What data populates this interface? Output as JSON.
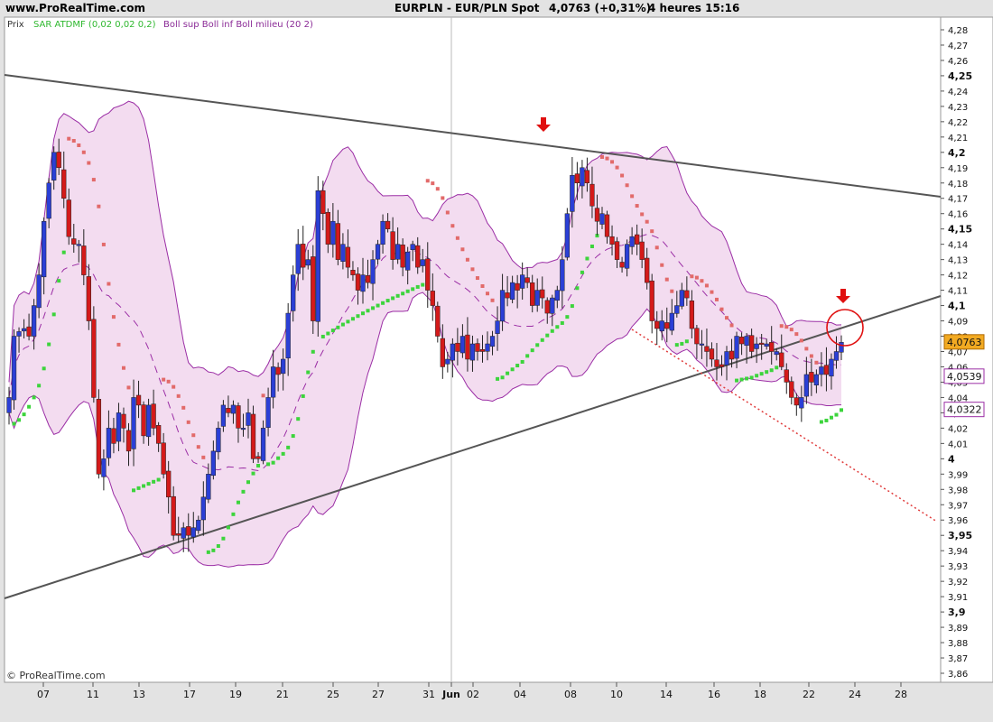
{
  "header": {
    "site": "www.ProRealTime.com",
    "symbol": "EURPLN - EUR/PLN Spot",
    "price_change": "4,0763 (+0,31%)",
    "timeframe": "4 heures  15:16"
  },
  "legend": {
    "price": "Prix",
    "sar": "SAR ATDMF (0,02 0,02 0,2)",
    "bollinger": "Boll sup Boll inf Boll milieu (20 2)"
  },
  "copyright": "© ProRealTime.com",
  "colors": {
    "bg": "#ffffff",
    "frame": "#e3e3e3",
    "up": "#2b3fd6",
    "down": "#d41a1a",
    "sar_up": "#3cd43c",
    "sar_down": "#e26a6a",
    "boll_fill": "#f3dcf0",
    "boll_line": "#9b2ea5",
    "trend": "#555555",
    "support_dotted": "#e03c3c",
    "arrow": "#e01010",
    "price_tag": "#f2aa22"
  },
  "y_axis": {
    "ticks": [
      "4,28",
      "4,27",
      "4,26",
      "4,25",
      "4,24",
      "4,23",
      "4,22",
      "4,21",
      "4,2",
      "4,19",
      "4,18",
      "4,17",
      "4,16",
      "4,15",
      "4,14",
      "4,13",
      "4,12",
      "4,11",
      "4,1",
      "4,09",
      "4,08",
      "4,07",
      "4,06",
      "4,05",
      "4,04",
      "4,03",
      "4,02",
      "4,01",
      "4",
      "3,99",
      "3,98",
      "3,97",
      "3,96",
      "3,95",
      "3,94",
      "3,93",
      "3,92",
      "3,91",
      "3,9",
      "3,89",
      "3,88",
      "3,87",
      "3,86"
    ],
    "bold": [
      "4,25",
      "4,2",
      "4,15",
      "4,1",
      "4",
      "3,95",
      "3,9"
    ],
    "tags": [
      {
        "label": "4,0763",
        "value": 4.0763,
        "style": "last"
      },
      {
        "label": "4,0539",
        "value": 4.0539,
        "style": "band"
      },
      {
        "label": "4,0322",
        "value": 4.0322,
        "style": "band"
      }
    ]
  },
  "x_axis": {
    "labels": [
      "07",
      "11",
      "13",
      "17",
      "19",
      "21",
      "25",
      "27",
      "31",
      "Jun",
      "02",
      "04",
      "08",
      "10",
      "14",
      "16",
      "18",
      "22",
      "24",
      "28"
    ]
  },
  "chart_data": {
    "type": "candlestick",
    "title": "EURPLN - EUR/PLN Spot",
    "timeframe": "4 heures",
    "ylim": [
      3.855,
      4.285
    ],
    "grid": false,
    "last_price": 4.0763,
    "change_pct": "+0,31%",
    "date_ticks": [
      "07",
      "11",
      "13",
      "17",
      "19",
      "21",
      "25",
      "27",
      "31",
      "Jun",
      "02",
      "04",
      "08",
      "10",
      "14",
      "16",
      "18",
      "22",
      "24",
      "28"
    ],
    "close": [
      4.04,
      4.08,
      4.083,
      4.085,
      4.08,
      4.1,
      4.12,
      4.155,
      4.18,
      4.2,
      4.19,
      4.17,
      4.145,
      4.14,
      4.14,
      4.12,
      4.09,
      4.04,
      3.99,
      4.0,
      4.02,
      4.01,
      4.03,
      4.02,
      4.005,
      4.04,
      4.035,
      4.015,
      4.035,
      4.02,
      4.01,
      3.99,
      3.975,
      3.95,
      3.95,
      3.955,
      3.95,
      3.955,
      3.96,
      3.975,
      3.99,
      4.005,
      4.02,
      4.035,
      4.03,
      4.035,
      4.02,
      4.02,
      4.03,
      4.0,
      4.0,
      4.02,
      4.04,
      4.06,
      4.055,
      4.065,
      4.095,
      4.12,
      4.14,
      4.125,
      4.13,
      4.09,
      4.175,
      4.16,
      4.14,
      4.155,
      4.13,
      4.14,
      4.125,
      4.12,
      4.11,
      4.12,
      4.115,
      4.13,
      4.14,
      4.155,
      4.15,
      4.13,
      4.14,
      4.125,
      4.135,
      4.14,
      4.125,
      4.13,
      4.11,
      4.1,
      4.08,
      4.06,
      4.065,
      4.075,
      4.07,
      4.08,
      4.065,
      4.075,
      4.07,
      4.07,
      4.075,
      4.08,
      4.09,
      4.11,
      4.105,
      4.115,
      4.11,
      4.12,
      4.115,
      4.1,
      4.11,
      4.105,
      4.095,
      4.105,
      4.11,
      4.13,
      4.16,
      4.185,
      4.18,
      4.19,
      4.18,
      4.165,
      4.155,
      4.16,
      4.145,
      4.14,
      4.13,
      4.125,
      4.14,
      4.145,
      4.14,
      4.13,
      4.115,
      4.09,
      4.085,
      4.09,
      4.085,
      4.095,
      4.1,
      4.11,
      4.105,
      4.085,
      4.075,
      4.075,
      4.07,
      4.065,
      4.06,
      4.06,
      4.07,
      4.065,
      4.08,
      4.075,
      4.08,
      4.07,
      4.075,
      4.075,
      4.075,
      4.07,
      4.07,
      4.06,
      4.05,
      4.04,
      4.035,
      4.04,
      4.055,
      4.05,
      4.055,
      4.06,
      4.055,
      4.065,
      4.07,
      4.076
    ],
    "parabolic_sar": "ATDMF (0,02 0,02 0,2)",
    "bollinger": "Boll sup, Boll inf, Boll milieu (20 2)",
    "annotations": [
      "resistance trendline",
      "support trendline",
      "dotted trendline",
      "down arrows",
      "circle"
    ]
  }
}
